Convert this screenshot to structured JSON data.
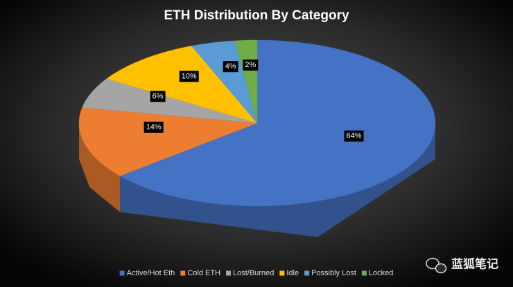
{
  "chart_data": {
    "type": "pie3d",
    "title": "ETH Distribution  By Category",
    "categories": [
      "Active/Hot Eth",
      "Cold ETH",
      "Lost/Burned",
      "Idle",
      "Possibly Lost",
      "Locked"
    ],
    "values": [
      64,
      14,
      6,
      10,
      4,
      2
    ],
    "value_labels": [
      "64%",
      "14%",
      "6%",
      "10%",
      "4%",
      "2%"
    ],
    "colors": [
      "#4472c4",
      "#ed7d31",
      "#a5a5a5",
      "#ffc000",
      "#5b9bd5",
      "#70ad47"
    ],
    "legend": "bottom"
  },
  "watermark": "蓝狐笔记"
}
